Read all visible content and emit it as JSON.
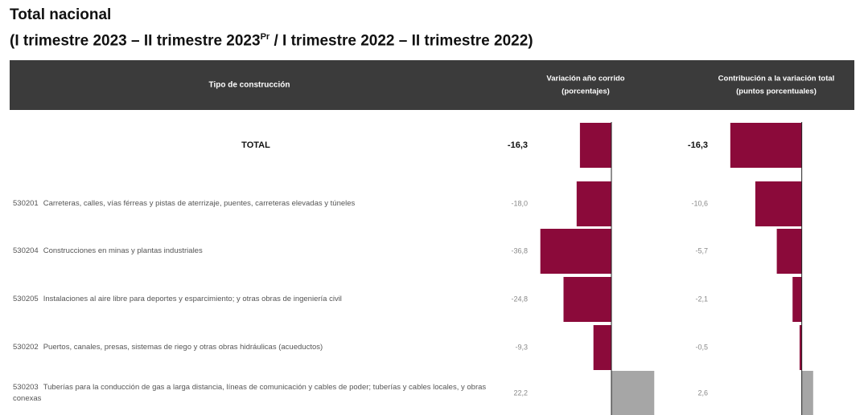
{
  "chart_data": {
    "type": "bar",
    "orientation": "horizontal",
    "title": "Total nacional",
    "subtitle": [
      "(I trimestre 2023 – II trimestre 2023",
      "Pr",
      " / I trimestre 2022 – II trimestre 2022)"
    ],
    "column_header": "Tipo de construcción",
    "codes": [
      null,
      "530201",
      "530204",
      "530205",
      "530202",
      "530203"
    ],
    "categories": [
      "TOTAL",
      "Carreteras, calles, vías férreas y pistas de aterrizaje, puentes, carreteras elevadas y túneles",
      "Construcciones en minas y plantas industriales",
      "Instalaciones al aire libre para deportes y esparcimiento; y otras obras de ingeniería civil",
      "Puertos, canales, presas, sistemas de riego y otras obras hidráulicas (acueductos)",
      "Tuberías para la conducción de gas a larga distancia, líneas de comunicación y cables de poder; tuberías y cables locales, y obras conexas"
    ],
    "negative_color": "#8b0a3a",
    "positive_color": "#a6a6a6",
    "series": [
      {
        "name": "Variación año corrido",
        "unit": "(porcentajes)",
        "values": [
          -16.3,
          -18.0,
          -36.8,
          -24.8,
          -9.3,
          22.2
        ],
        "value_labels": [
          "-16,3",
          "-18,0",
          "-36,8",
          "-24,8",
          "-9,3",
          "22,2"
        ],
        "xlim": [
          -40,
          25
        ]
      },
      {
        "name": "Contribución a la variación total",
        "unit": "(puntos porcentuales)",
        "values": [
          -16.3,
          -10.6,
          -5.7,
          -2.1,
          -0.5,
          2.6
        ],
        "value_labels": [
          "-16,3",
          "-10,6",
          "-5,7",
          "-2,1",
          "-0,5",
          "2,6"
        ],
        "xlim": [
          -17,
          3
        ]
      }
    ]
  }
}
